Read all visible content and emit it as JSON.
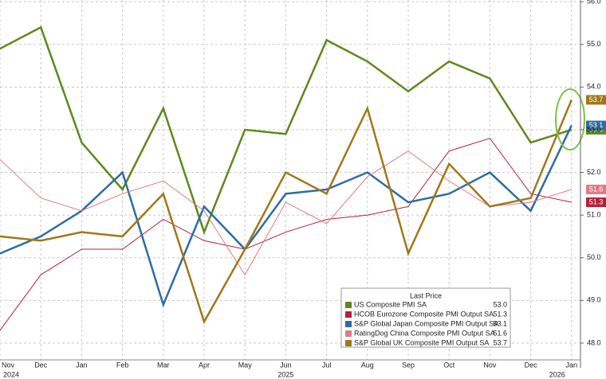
{
  "chart_data": {
    "type": "line",
    "categories": [
      "Nov",
      "Dec",
      "Jan",
      "Feb",
      "Mar",
      "Apr",
      "May",
      "Jun",
      "Jul",
      "Aug",
      "Sep",
      "Oct",
      "Nov",
      "Dec",
      "Jan"
    ],
    "years": [
      "2024",
      null,
      null,
      null,
      null,
      null,
      null,
      "2025",
      null,
      null,
      null,
      null,
      null,
      null,
      "2026"
    ],
    "legend_title": "Last Price",
    "series": [
      {
        "name": "US Composite PMI SA",
        "color": "#5b8a1c",
        "width": 2.5,
        "values": [
          54.9,
          55.4,
          52.7,
          51.6,
          53.5,
          50.6,
          53.0,
          52.9,
          55.1,
          54.6,
          53.9,
          54.6,
          54.2,
          52.7,
          53.0
        ],
        "value_labels": [
          null,
          null,
          null,
          null,
          null,
          null,
          null,
          null,
          null,
          null,
          null,
          null,
          null,
          null,
          "53.0"
        ]
      },
      {
        "name": "HCOB Eurozone Composite PMI Output SA",
        "color": "#b8203a",
        "width": 1,
        "values": [
          48.3,
          49.6,
          50.2,
          50.2,
          50.9,
          50.4,
          50.2,
          50.6,
          50.9,
          51.0,
          51.2,
          52.5,
          52.8,
          51.5,
          51.3
        ],
        "value_labels": [
          null,
          null,
          null,
          null,
          null,
          null,
          null,
          null,
          null,
          null,
          null,
          null,
          null,
          null,
          "51.3"
        ]
      },
      {
        "name": "S&P Global Japan Composite PMI Output SA",
        "color": "#2f6ca3",
        "width": 2.5,
        "values": [
          50.1,
          50.5,
          51.1,
          52.0,
          48.9,
          51.2,
          50.2,
          51.5,
          51.6,
          52.0,
          51.3,
          51.5,
          52.0,
          51.1,
          53.1
        ],
        "value_labels": [
          null,
          null,
          null,
          null,
          null,
          null,
          null,
          null,
          null,
          null,
          null,
          null,
          null,
          null,
          "53.1"
        ]
      },
      {
        "name": "RatingDog China Composite PMI Output SA",
        "color": "#e07a86",
        "width": 1,
        "values": [
          52.3,
          51.4,
          51.1,
          51.5,
          51.8,
          51.1,
          49.6,
          51.3,
          50.8,
          51.9,
          52.5,
          51.8,
          51.2,
          51.3,
          51.6
        ],
        "value_labels": [
          null,
          null,
          null,
          null,
          null,
          null,
          null,
          null,
          null,
          null,
          null,
          null,
          null,
          null,
          "51.6"
        ]
      },
      {
        "name": "S&P Global UK Composite PMI Output SA",
        "color": "#a07818",
        "width": 2.5,
        "values": [
          50.5,
          50.4,
          50.6,
          50.5,
          51.5,
          48.5,
          50.2,
          52.0,
          51.5,
          53.5,
          50.1,
          52.2,
          51.2,
          51.4,
          53.7
        ],
        "value_labels": [
          null,
          null,
          null,
          null,
          null,
          null,
          null,
          null,
          null,
          null,
          null,
          null,
          null,
          null,
          "53.7"
        ]
      }
    ],
    "ylim": [
      47.42,
      56.04
    ],
    "yticks": [
      {
        "value": 48,
        "label": "48.0"
      },
      {
        "value": 49,
        "label": "49.0"
      },
      {
        "value": 50,
        "label": "50.0"
      },
      {
        "value": 51,
        "label": "51.0"
      },
      {
        "value": 52,
        "label": "52.0"
      },
      {
        "value": 53,
        "label": "53.0"
      },
      {
        "value": 54,
        "label": "54.0"
      },
      {
        "value": 55,
        "label": "55.0"
      },
      {
        "value": 56,
        "label": "56.0"
      }
    ],
    "grid": true
  }
}
